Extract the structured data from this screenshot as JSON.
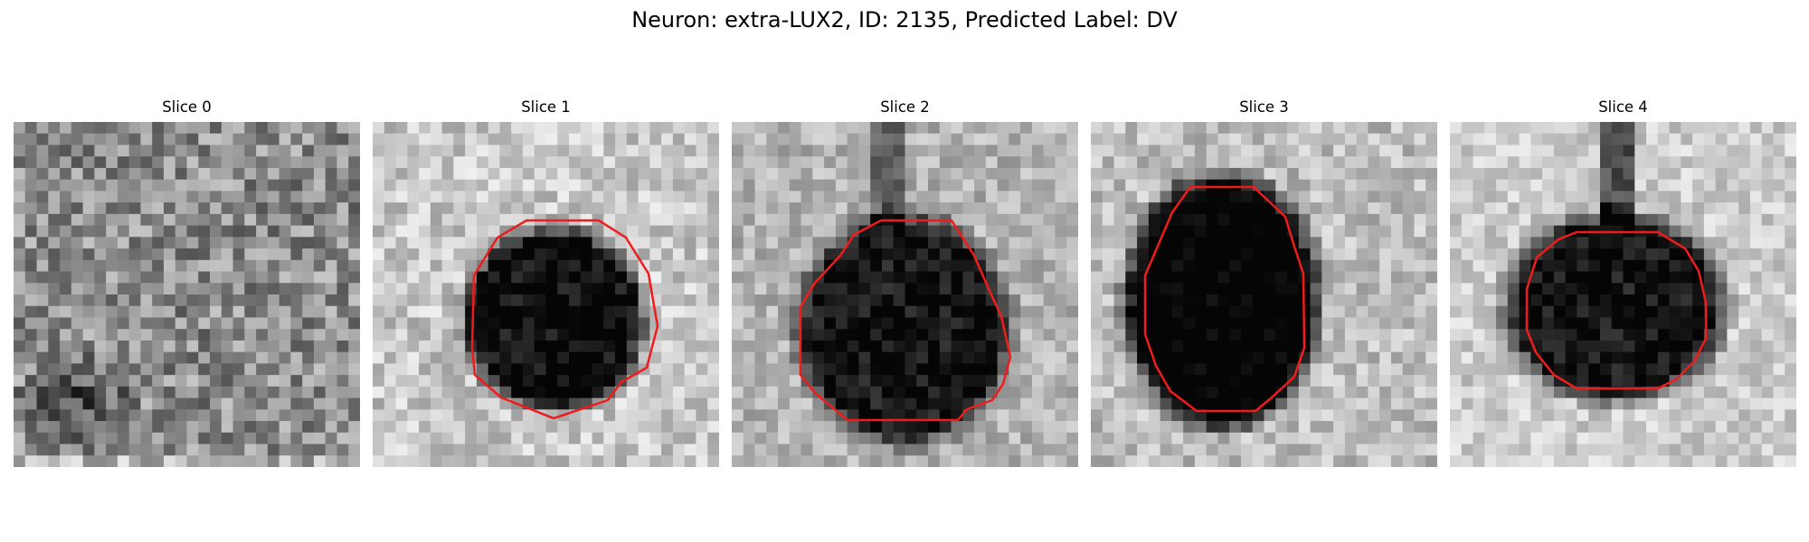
{
  "figure": {
    "title": "Neuron: extra-LUX2, ID: 2135, Predicted Label: DV"
  },
  "panels": [
    {
      "title": "Slice 0",
      "has_contour": false
    },
    {
      "title": "Slice 1",
      "has_contour": true
    },
    {
      "title": "Slice 2",
      "has_contour": true
    },
    {
      "title": "Slice 3",
      "has_contour": true
    },
    {
      "title": "Slice 4",
      "has_contour": true
    }
  ],
  "colors": {
    "contour": "#ee1c1c",
    "background": "#ffffff"
  }
}
